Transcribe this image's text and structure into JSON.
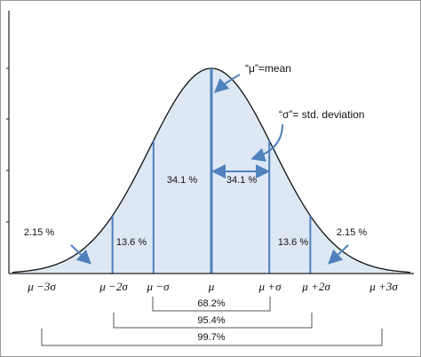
{
  "area_labels": [
    "2.15 %",
    "13.6 %",
    "34.1 %",
    "34.1 %",
    "13.6 %",
    "2.15 %"
  ],
  "annotations": {
    "mean": "“μ”=mean",
    "std": "“σ”= std. deviation"
  },
  "x_labels": [
    "μ −3σ",
    "μ −2σ",
    "μ −σ",
    "μ",
    "μ +σ",
    "μ +2σ",
    "μ +3σ"
  ],
  "ranges": [
    "68.2%",
    "95.4%",
    "99.7%"
  ]
}
